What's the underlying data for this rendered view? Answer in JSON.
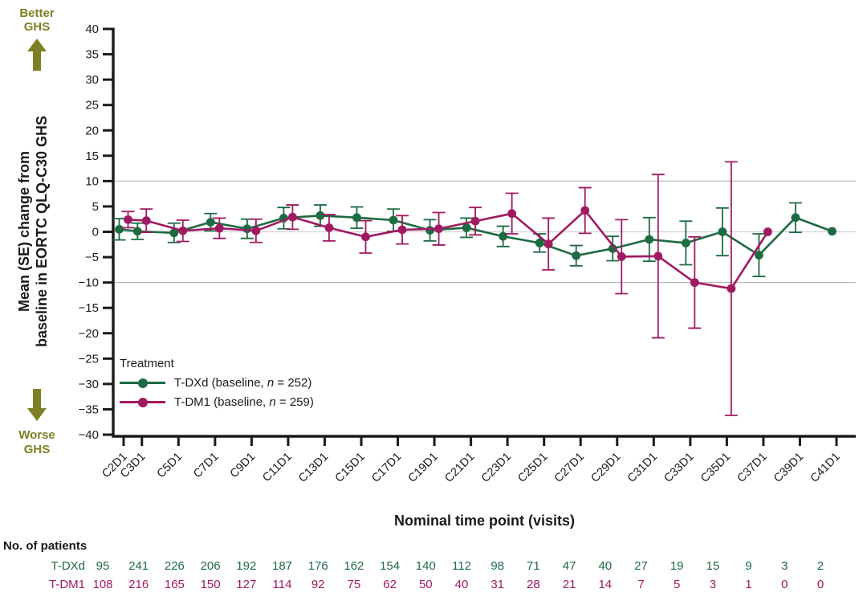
{
  "colors": {
    "tdxd": "#1d6b41",
    "tdm1": "#a01a62",
    "olive": "#7e7f25",
    "axis": "#1a1a1a",
    "gridline": "#b9b9b9",
    "zero_line": "#d2d2d2"
  },
  "better_ghs": {
    "line1": "Better",
    "line2": "GHS"
  },
  "worse_ghs": {
    "line1": "Worse",
    "line2": "GHS"
  },
  "y_axis_title": {
    "line1": "Mean (SE) change from",
    "line2": "baseline in EORTC QLQ-C30 GHS"
  },
  "x_axis_title": "Nominal time point (visits)",
  "legend": {
    "title": "Treatment",
    "entries": [
      {
        "prefix": "T-DXd (baseline, ",
        "n_symbol": "n",
        "suffix": " = 252)"
      },
      {
        "prefix": "T-DM1 (baseline, ",
        "n_symbol": "n",
        "suffix": " = 259)"
      }
    ]
  },
  "chart_data": {
    "type": "line",
    "title": "",
    "xlabel": "Nominal time point (visits)",
    "ylabel": "Mean (SE) change from baseline in EORTC QLQ-C30 GHS",
    "ylim": [
      -40,
      40
    ],
    "y_tick_step": 5,
    "grid": "reference lines only",
    "legend_position": "inside lower-left",
    "reference_lines": [
      10,
      0,
      -10
    ],
    "categories": [
      "C2D1",
      "C3D1",
      "C5D1",
      "C7D1",
      "C9D1",
      "C11D1",
      "C13D1",
      "C15D1",
      "C17D1",
      "C19D1",
      "C21D1",
      "C23D1",
      "C25D1",
      "C27D1",
      "C29D1",
      "C31D1",
      "C33D1",
      "C35D1",
      "C37D1",
      "C39D1",
      "C41D1"
    ],
    "x_cycles": [
      2,
      3,
      5,
      7,
      9,
      11,
      13,
      15,
      17,
      19,
      21,
      23,
      25,
      27,
      29,
      31,
      33,
      35,
      37,
      39,
      41
    ],
    "series": [
      {
        "name": "T-DXd",
        "color": "#1d6b41",
        "values": [
          0.5,
          0.1,
          -0.2,
          1.9,
          0.6,
          2.7,
          3.2,
          2.8,
          2.3,
          0.3,
          0.8,
          -0.9,
          -2.2,
          -4.7,
          -3.3,
          -1.5,
          -2.2,
          0,
          -4.6,
          2.8,
          0.1
        ],
        "se": [
          2.1,
          1.6,
          1.9,
          1.7,
          1.9,
          2.1,
          2.1,
          2.1,
          2.2,
          2.1,
          1.9,
          2.0,
          1.8,
          2.0,
          2.4,
          4.3,
          4.3,
          4.7,
          4.2,
          2.9,
          null
        ]
      },
      {
        "name": "T-DM1",
        "color": "#a01a62",
        "values": [
          2.4,
          2.2,
          0.2,
          0.7,
          0.2,
          2.9,
          0.8,
          -1.0,
          0.4,
          0.6,
          2.1,
          3.6,
          -2.4,
          4.2,
          -4.9,
          -4.8,
          -10.0,
          -11.2,
          0,
          null,
          null
        ],
        "se": [
          1.6,
          2.3,
          2.1,
          2.0,
          2.3,
          2.4,
          2.6,
          3.2,
          2.8,
          3.2,
          2.7,
          4.0,
          5.1,
          4.5,
          7.3,
          16.1,
          9.0,
          25.0,
          null,
          null,
          null
        ]
      }
    ]
  },
  "patients_table": {
    "header": "No. of patients",
    "rows": [
      {
        "label": "T-DXd",
        "color": "#1d6b41",
        "counts": [
          95,
          241,
          226,
          206,
          192,
          187,
          176,
          162,
          154,
          140,
          112,
          98,
          71,
          47,
          40,
          27,
          19,
          15,
          9,
          3,
          2
        ]
      },
      {
        "label": "T-DM1",
        "color": "#a01a62",
        "counts": [
          108,
          216,
          165,
          150,
          127,
          114,
          92,
          75,
          62,
          50,
          40,
          31,
          28,
          21,
          14,
          7,
          5,
          3,
          1,
          0,
          0
        ]
      }
    ]
  }
}
